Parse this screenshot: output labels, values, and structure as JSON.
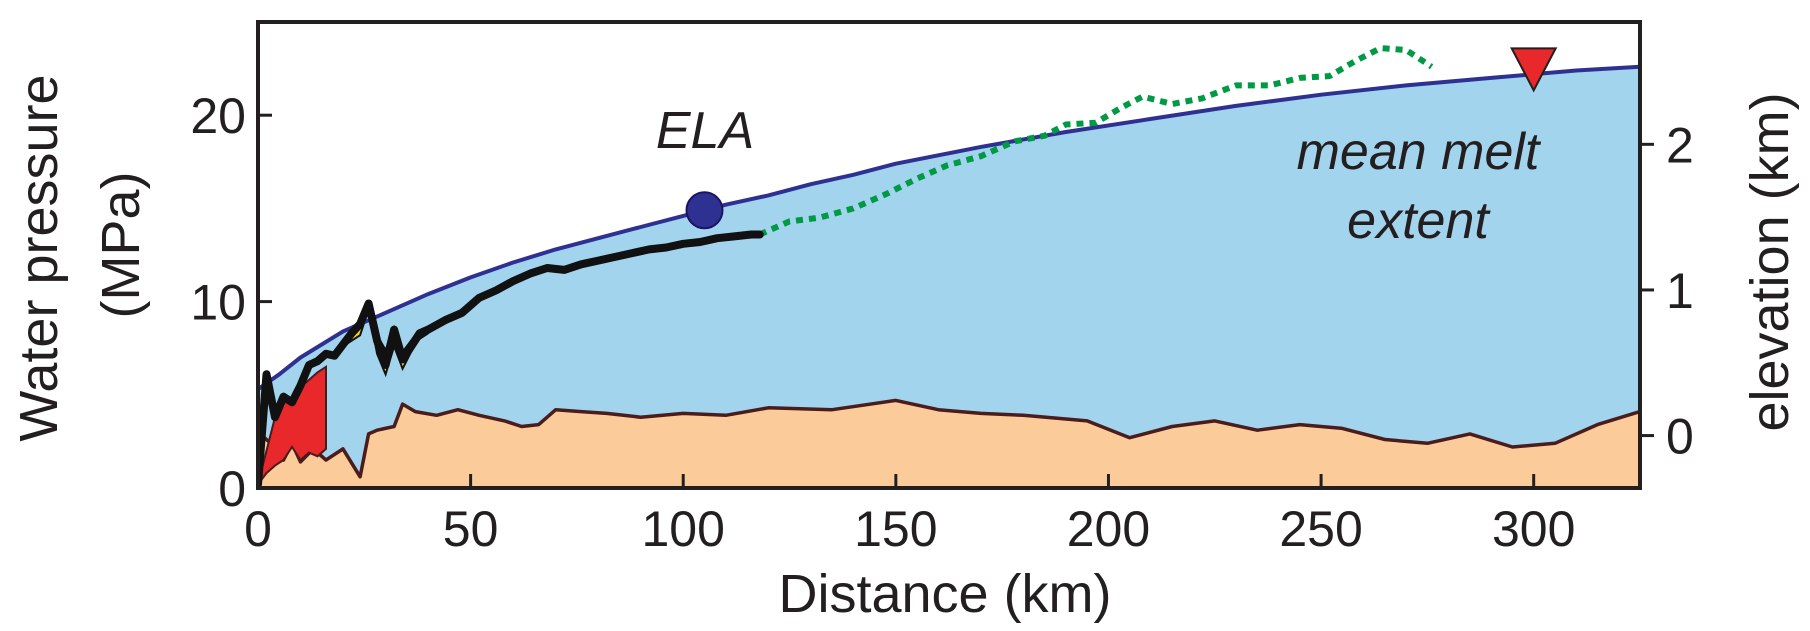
{
  "chart_data": {
    "type": "area",
    "xlabel": "Distance (km)",
    "ylabel_line1": "Water pressure",
    "ylabel_line2": "(MPa)",
    "ylabel_right": "elevation (km)",
    "xlim": [
      0,
      325
    ],
    "ylim": [
      0,
      25
    ],
    "ylim_right": [
      -0.36,
      2.84
    ],
    "xticks": [
      0,
      50,
      100,
      150,
      200,
      250,
      300
    ],
    "yticks": [
      0,
      10,
      20
    ],
    "yticks_right": [
      0,
      1,
      2
    ],
    "grid": false,
    "annotations": {
      "ela_label": "ELA",
      "mean_melt_line1": "mean melt",
      "mean_melt_line2": "extent"
    },
    "markers": {
      "ela": {
        "x": 105,
        "y": 14.9
      },
      "mean_melt_extent": {
        "x": 300,
        "y": 22.3
      }
    },
    "colors": {
      "ice": "#a3d4ee",
      "surface_line": "#2e3192",
      "bed": "#fbcb99",
      "bed_line": "#4b1c1c",
      "water_pressure": "#111111",
      "water_pressure_extension": "#009944",
      "overpressure": "#fcd116",
      "red_zone": "#e8282b",
      "ela_marker": "#2e3192",
      "melt_marker": "#e8282b"
    },
    "series": [
      {
        "key": "surface",
        "x": [
          0,
          5,
          10,
          20,
          30,
          40,
          50,
          60,
          70,
          80,
          90,
          100,
          110,
          120,
          130,
          140,
          150,
          170,
          190,
          210,
          230,
          250,
          270,
          290,
          310,
          325
        ],
        "values": [
          5.3,
          6.1,
          7.0,
          8.4,
          9.4,
          10.4,
          11.3,
          12.1,
          12.8,
          13.4,
          14.0,
          14.6,
          15.2,
          15.7,
          16.3,
          16.8,
          17.4,
          18.3,
          19.1,
          19.8,
          20.5,
          21.1,
          21.6,
          22.0,
          22.4,
          22.6
        ]
      },
      {
        "key": "bed",
        "x": [
          0,
          3,
          6,
          8,
          10,
          13,
          16,
          20,
          24,
          26,
          28,
          32,
          34,
          37,
          42,
          47,
          52,
          58,
          62,
          66,
          70,
          76,
          82,
          90,
          100,
          110,
          120,
          135,
          150,
          160,
          170,
          180,
          195,
          205,
          215,
          225,
          235,
          245,
          255,
          265,
          275,
          285,
          295,
          305,
          315,
          325
        ],
        "values": [
          3.0,
          2.4,
          1.5,
          2.4,
          1.4,
          2.1,
          1.5,
          2.1,
          0.6,
          2.9,
          3.1,
          3.3,
          4.5,
          4.1,
          3.9,
          4.2,
          3.9,
          3.6,
          3.3,
          3.4,
          4.2,
          4.1,
          4.0,
          3.8,
          4.0,
          3.9,
          4.3,
          4.2,
          4.7,
          4.2,
          4.0,
          3.9,
          3.6,
          2.7,
          3.3,
          3.6,
          3.1,
          3.4,
          3.2,
          2.6,
          2.4,
          2.9,
          2.2,
          2.4,
          3.4,
          4.1
        ]
      },
      {
        "key": "water_pressure",
        "x": [
          0,
          2,
          4,
          6,
          8,
          10,
          12,
          14,
          16,
          18,
          20,
          22,
          24,
          26,
          28,
          30,
          32,
          34,
          36,
          38,
          40,
          44,
          48,
          52,
          56,
          60,
          64,
          68,
          72,
          76,
          80,
          84,
          88,
          92,
          96,
          100,
          104,
          108,
          112,
          116,
          118
        ],
        "values": [
          0.2,
          6.1,
          3.8,
          4.9,
          4.6,
          5.5,
          6.6,
          6.8,
          7.2,
          7.1,
          7.7,
          8.3,
          8.8,
          9.9,
          7.9,
          6.6,
          8.5,
          6.9,
          7.6,
          8.3,
          8.5,
          9.0,
          9.4,
          10.2,
          10.6,
          11.1,
          11.5,
          11.8,
          11.7,
          12.0,
          12.2,
          12.4,
          12.6,
          12.8,
          12.9,
          13.1,
          13.2,
          13.4,
          13.5,
          13.6,
          13.6
        ]
      },
      {
        "key": "water_pressure_extension",
        "x": [
          118,
          125,
          132,
          140,
          148,
          155,
          162,
          170,
          178,
          185,
          190,
          197,
          203,
          208,
          215,
          222,
          230,
          238,
          245,
          252,
          258,
          264,
          270,
          276
        ],
        "values": [
          13.6,
          14.3,
          14.5,
          15.0,
          15.8,
          16.6,
          17.3,
          17.8,
          18.6,
          18.9,
          19.5,
          19.6,
          20.4,
          21.0,
          20.6,
          20.9,
          21.6,
          21.6,
          22.0,
          22.1,
          22.9,
          23.6,
          23.5,
          22.6
        ]
      },
      {
        "key": "red_zone",
        "x": [
          0,
          2,
          4,
          6,
          8,
          10,
          12,
          14,
          16,
          16,
          14,
          12,
          10,
          8,
          6,
          4,
          2,
          0
        ],
        "values": [
          0.2,
          2.0,
          3.8,
          4.6,
          4.6,
          5.4,
          5.8,
          6.2,
          6.5,
          2.1,
          1.7,
          1.9,
          1.5,
          2.2,
          1.5,
          1.2,
          0.8,
          0.2
        ]
      },
      {
        "key": "overpressure",
        "x": [
          20,
          24,
          26,
          28,
          30,
          32,
          34,
          36,
          38,
          40,
          40,
          38,
          36,
          34,
          32,
          30,
          28,
          26,
          24,
          20
        ],
        "values": [
          7.7,
          8.9,
          9.3,
          8.2,
          7.4,
          8.6,
          7.3,
          7.9,
          8.4,
          8.6,
          8.3,
          8.0,
          7.3,
          6.4,
          7.6,
          6.1,
          7.2,
          9.6,
          8.2,
          7.6
        ]
      }
    ]
  }
}
